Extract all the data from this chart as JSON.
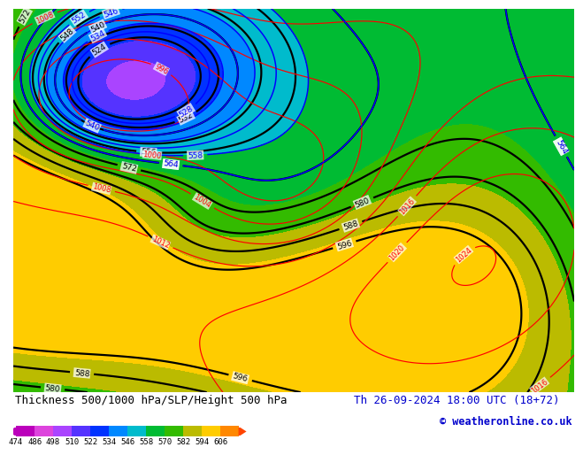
{
  "title_left": "Thickness 500/1000 hPa/SLP/Height 500 hPa",
  "title_right": "Th 26-09-2024 18:00 UTC (18+72)",
  "copyright": "© weatheronline.co.uk",
  "colorbar_values": [
    474,
    486,
    498,
    510,
    522,
    534,
    546,
    558,
    570,
    582,
    594,
    606
  ],
  "colorbar_colors": [
    "#bb00bb",
    "#dd44dd",
    "#aa44ff",
    "#5533ff",
    "#0033ff",
    "#0088ff",
    "#00bbcc",
    "#00bb33",
    "#33bb00",
    "#bbbb00",
    "#ffcc00",
    "#ff8800",
    "#ff4400"
  ],
  "bg_color": "#ffffff",
  "bottom_bar_height": 0.115,
  "title_fontsize": 9.0,
  "copyright_fontsize": 8.5
}
